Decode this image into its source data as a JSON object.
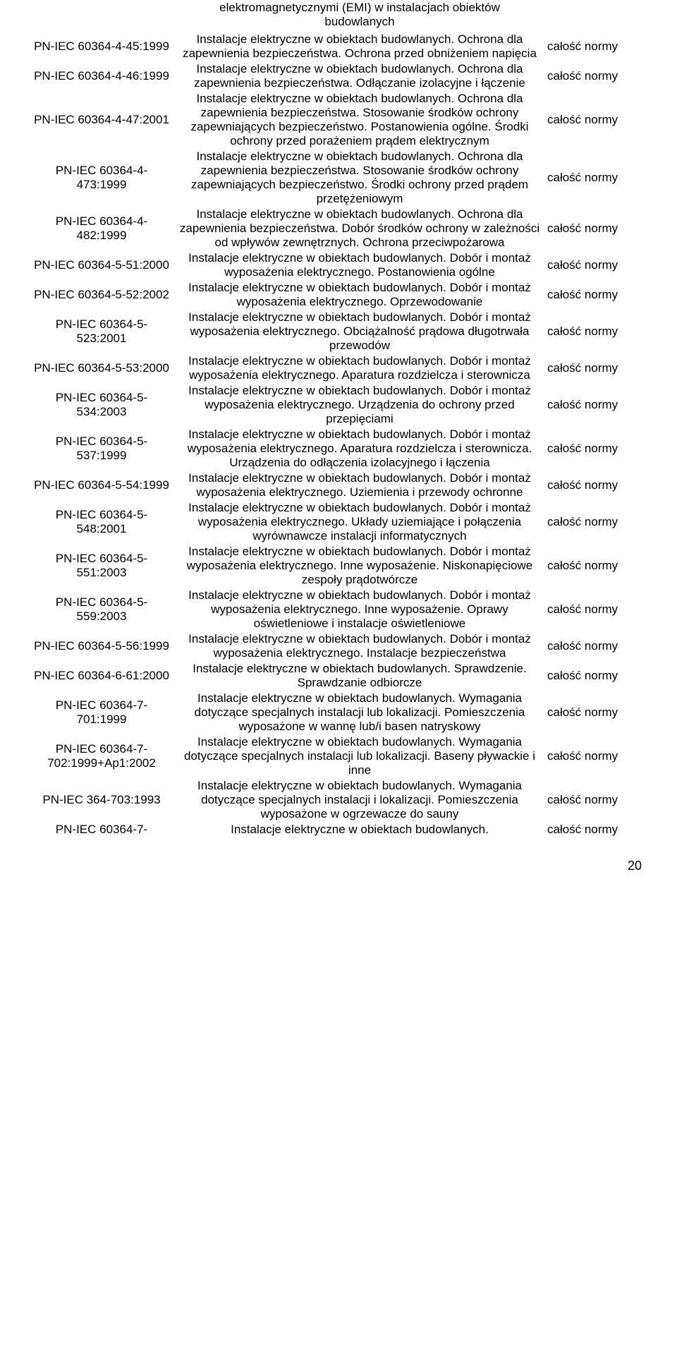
{
  "header_line1": "elektromagnetycznymi (EMI) w instalacjach obiektów",
  "header_line2": "budowlanych",
  "scope_label": "całość normy",
  "page_number": "20",
  "rows": [
    {
      "code": "PN-IEC 60364-4-45:1999",
      "desc": "Instalacje elektryczne w obiektach budowlanych. Ochrona dla zapewnienia bezpieczeństwa. Ochrona przed obniżeniem napięcia"
    },
    {
      "code": "PN-IEC 60364-4-46:1999",
      "desc": "Instalacje elektryczne w obiektach budowlanych. Ochrona dla zapewnienia bezpieczeństwa. Odłączanie izolacyjne i łączenie"
    },
    {
      "code": "PN-IEC 60364-4-47:2001",
      "desc": "Instalacje elektryczne w obiektach budowlanych. Ochrona dla zapewnienia bezpieczeństwa. Stosowanie środków ochrony zapewniających bezpieczeństwo. Postanowienia ogólne. Środki ochrony przed porażeniem prądem elektrycznym"
    },
    {
      "code": "PN-IEC 60364-4-473:1999",
      "desc": "Instalacje elektryczne w obiektach budowlanych. Ochrona dla zapewnienia bezpieczeństwa. Stosowanie środków ochrony zapewniających bezpieczeństwo. Środki ochrony przed prądem przetężeniowym"
    },
    {
      "code": "PN-IEC 60364-4-482:1999",
      "desc": "Instalacje elektryczne w obiektach budowlanych. Ochrona dla zapewnienia bezpieczeństwa. Dobór środków ochrony w zależności od wpływów zewnętrznych. Ochrona przeciwpożarowa"
    },
    {
      "code": "PN-IEC 60364-5-51:2000",
      "desc": "Instalacje elektryczne w obiektach budowlanych. Dobór i montaż wyposażenia elektrycznego. Postanowienia ogólne"
    },
    {
      "code": "PN-IEC 60364-5-52:2002",
      "desc": "Instalacje elektryczne w obiektach budowlanych. Dobór i montaż wyposażenia elektrycznego. Oprzewodowanie"
    },
    {
      "code": "PN-IEC 60364-5-523:2001",
      "desc": "Instalacje elektryczne w obiektach budowlanych. Dobór i montaż wyposażenia elektrycznego. Obciążalność prądowa długotrwała przewodów"
    },
    {
      "code": "PN-IEC 60364-5-53:2000",
      "desc": "Instalacje elektryczne w obiektach budowlanych. Dobór i montaż wyposażenia elektrycznego. Aparatura rozdzielcza i sterownicza"
    },
    {
      "code": "PN-IEC 60364-5-534:2003",
      "desc": "Instalacje elektryczne w obiektach budowlanych. Dobór i montaż wyposażenia elektrycznego. Urządzenia do ochrony przed przepięciami"
    },
    {
      "code": "PN-IEC 60364-5-537:1999",
      "desc": "Instalacje elektryczne w obiektach budowlanych. Dobór i montaż wyposażenia elektrycznego. Aparatura rozdzielcza i sterownicza. Urządzenia do odłączenia izolacyjnego i łączenia"
    },
    {
      "code": "PN-IEC 60364-5-54:1999",
      "desc": "Instalacje elektryczne w obiektach budowlanych. Dobór i montaż wyposażenia elektrycznego. Uziemienia i przewody ochronne"
    },
    {
      "code": "PN-IEC 60364-5-548:2001",
      "desc": "Instalacje elektryczne w obiektach budowlanych. Dobór i montaż wyposażenia elektrycznego. Układy uziemiające i połączenia wyrównawcze instalacji informatycznych"
    },
    {
      "code": "PN-IEC 60364-5-551:2003",
      "desc": "Instalacje elektryczne w obiektach budowlanych. Dobór i montaż wyposażenia elektrycznego. Inne wyposażenie. Niskonapięciowe zespoły prądotwórcze"
    },
    {
      "code": "PN-IEC 60364-5-559:2003",
      "desc": "Instalacje elektryczne w obiektach budowlanych. Dobór i montaż wyposażenia elektrycznego. Inne wyposażenie. Oprawy oświetleniowe i instalacje oświetleniowe"
    },
    {
      "code": "PN-IEC 60364-5-56:1999",
      "desc": "Instalacje elektryczne w obiektach budowlanych. Dobór i montaż wyposażenia elektrycznego. Instalacje bezpieczeństwa"
    },
    {
      "code": "PN-IEC 60364-6-61:2000",
      "desc": "Instalacje elektryczne w obiektach budowlanych. Sprawdzenie. Sprawdzanie odbiorcze"
    },
    {
      "code": "PN-IEC 60364-7-701:1999",
      "desc": "Instalacje elektryczne w obiektach budowlanych. Wymagania dotyczące specjalnych instalacji lub lokalizacji. Pomieszczenia wyposażone w wannę lub/i basen natryskowy"
    },
    {
      "code": "PN-IEC 60364-7-702:1999+Ap1:2002",
      "desc": "Instalacje elektryczne w obiektach budowlanych. Wymagania dotyczące specjalnych instalacji lub lokalizacji. Baseny pływackie i inne"
    },
    {
      "code": "PN-IEC 364-703:1993",
      "desc": "Instalacje elektryczne w obiektach budowlanych. Wymagania dotyczące specjalnych instalacji i lokalizacji. Pomieszczenia wyposażone w ogrzewacze do sauny"
    },
    {
      "code": "PN-IEC 60364-7-",
      "desc": "Instalacje elektryczne w obiektach budowlanych."
    }
  ]
}
